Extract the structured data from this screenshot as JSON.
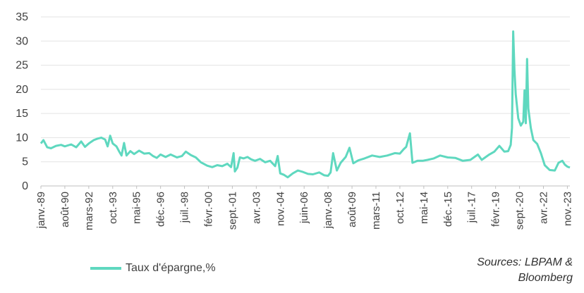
{
  "chart_data": {
    "type": "line",
    "title": "",
    "xlabel": "",
    "ylabel": "",
    "ylim": [
      0,
      35
    ],
    "yticks": [
      "0",
      "5",
      "10",
      "15",
      "20",
      "25",
      "30",
      "35"
    ],
    "grid": true,
    "legend_position": "bottom-left",
    "x_tick_labels": [
      "janv.-89",
      "août-90",
      "mars-92",
      "oct.-93",
      "mai-95",
      "déc.-96",
      "juil.-98",
      "févr.-00",
      "sept.-01",
      "avr.-03",
      "nov.-04",
      "juin-06",
      "janv.-08",
      "août-09",
      "mars-11",
      "oct.-12",
      "mai-14",
      "déc.-15",
      "juil.-17",
      "févr.-19",
      "sept.-20",
      "avr.-22",
      "nov.-23"
    ],
    "series": [
      {
        "name": "Taux d'épargne,%",
        "color": "#5fd8bf",
        "points": [
          [
            "1989-01",
            8.8
          ],
          [
            "1989-03",
            9.5
          ],
          [
            "1989-06",
            8.0
          ],
          [
            "1989-09",
            7.8
          ],
          [
            "1990-01",
            8.3
          ],
          [
            "1990-05",
            8.5
          ],
          [
            "1990-08",
            8.2
          ],
          [
            "1991-01",
            8.6
          ],
          [
            "1991-05",
            8.0
          ],
          [
            "1991-09",
            9.2
          ],
          [
            "1991-12",
            8.1
          ],
          [
            "1992-03",
            8.8
          ],
          [
            "1992-07",
            9.5
          ],
          [
            "1992-10",
            9.8
          ],
          [
            "1993-01",
            10.0
          ],
          [
            "1993-04",
            9.6
          ],
          [
            "1993-06",
            8.2
          ],
          [
            "1993-08",
            10.4
          ],
          [
            "1993-10",
            8.8
          ],
          [
            "1994-01",
            8.2
          ],
          [
            "1994-03",
            7.2
          ],
          [
            "1994-05",
            6.3
          ],
          [
            "1994-07",
            8.9
          ],
          [
            "1994-09",
            6.3
          ],
          [
            "1994-12",
            7.2
          ],
          [
            "1995-03",
            6.6
          ],
          [
            "1995-07",
            7.3
          ],
          [
            "1995-11",
            6.7
          ],
          [
            "1996-03",
            6.8
          ],
          [
            "1996-06",
            6.2
          ],
          [
            "1996-09",
            5.8
          ],
          [
            "1996-12",
            6.5
          ],
          [
            "1997-04",
            6.0
          ],
          [
            "1997-08",
            6.5
          ],
          [
            "1998-01",
            5.9
          ],
          [
            "1998-05",
            6.2
          ],
          [
            "1998-08",
            7.1
          ],
          [
            "1998-12",
            6.4
          ],
          [
            "1999-04",
            5.9
          ],
          [
            "1999-08",
            4.9
          ],
          [
            "2000-01",
            4.2
          ],
          [
            "2000-05",
            3.9
          ],
          [
            "2000-09",
            4.3
          ],
          [
            "2001-01",
            4.1
          ],
          [
            "2001-05",
            4.6
          ],
          [
            "2001-08",
            3.9
          ],
          [
            "2001-10",
            6.8
          ],
          [
            "2001-11",
            3.0
          ],
          [
            "2002-01",
            3.8
          ],
          [
            "2002-03",
            5.9
          ],
          [
            "2002-06",
            5.7
          ],
          [
            "2002-09",
            6.0
          ],
          [
            "2002-12",
            5.5
          ],
          [
            "2003-03",
            5.2
          ],
          [
            "2003-07",
            5.6
          ],
          [
            "2003-11",
            4.9
          ],
          [
            "2004-03",
            5.2
          ],
          [
            "2004-07",
            4.1
          ],
          [
            "2004-09",
            6.2
          ],
          [
            "2004-11",
            2.6
          ],
          [
            "2005-02",
            2.3
          ],
          [
            "2005-05",
            1.8
          ],
          [
            "2005-09",
            2.6
          ],
          [
            "2006-01",
            3.2
          ],
          [
            "2006-05",
            2.9
          ],
          [
            "2006-09",
            2.5
          ],
          [
            "2007-01",
            2.4
          ],
          [
            "2007-06",
            2.8
          ],
          [
            "2007-10",
            2.2
          ],
          [
            "2008-01",
            2.1
          ],
          [
            "2008-03",
            2.8
          ],
          [
            "2008-05",
            6.8
          ],
          [
            "2008-08",
            3.2
          ],
          [
            "2008-11",
            4.8
          ],
          [
            "2009-03",
            6.0
          ],
          [
            "2009-06",
            7.9
          ],
          [
            "2009-09",
            4.7
          ],
          [
            "2010-01",
            5.3
          ],
          [
            "2010-06",
            5.7
          ],
          [
            "2010-12",
            6.3
          ],
          [
            "2011-06",
            6.0
          ],
          [
            "2011-12",
            6.3
          ],
          [
            "2012-06",
            6.8
          ],
          [
            "2012-10",
            6.7
          ],
          [
            "2013-01",
            7.6
          ],
          [
            "2013-03",
            8.1
          ],
          [
            "2013-06",
            10.9
          ],
          [
            "2013-08",
            4.8
          ],
          [
            "2013-12",
            5.2
          ],
          [
            "2014-04",
            5.2
          ],
          [
            "2014-08",
            5.4
          ],
          [
            "2015-01",
            5.7
          ],
          [
            "2015-06",
            6.3
          ],
          [
            "2015-12",
            5.9
          ],
          [
            "2016-06",
            5.8
          ],
          [
            "2016-12",
            5.2
          ],
          [
            "2017-06",
            5.4
          ],
          [
            "2017-12",
            6.5
          ],
          [
            "2018-03",
            5.4
          ],
          [
            "2018-09",
            6.5
          ],
          [
            "2019-01",
            7.1
          ],
          [
            "2019-05",
            8.3
          ],
          [
            "2019-09",
            7.1
          ],
          [
            "2019-12",
            7.2
          ],
          [
            "2020-02",
            8.5
          ],
          [
            "2020-03",
            12.0
          ],
          [
            "2020-04",
            32.0
          ],
          [
            "2020-05",
            24.0
          ],
          [
            "2020-06",
            19.0
          ],
          [
            "2020-08",
            14.0
          ],
          [
            "2020-10",
            12.5
          ],
          [
            "2020-12",
            13.3
          ],
          [
            "2021-01",
            19.8
          ],
          [
            "2021-02",
            13.0
          ],
          [
            "2021-03",
            26.3
          ],
          [
            "2021-04",
            16.0
          ],
          [
            "2021-06",
            12.0
          ],
          [
            "2021-08",
            9.5
          ],
          [
            "2021-11",
            8.7
          ],
          [
            "2022-02",
            6.8
          ],
          [
            "2022-05",
            4.3
          ],
          [
            "2022-09",
            3.3
          ],
          [
            "2023-01",
            3.2
          ],
          [
            "2023-04",
            4.8
          ],
          [
            "2023-07",
            5.2
          ],
          [
            "2023-09",
            4.4
          ],
          [
            "2023-11",
            4.0
          ],
          [
            "2024-01",
            3.8
          ]
        ]
      }
    ]
  },
  "legend": {
    "label": "Taux d'épargne,%"
  },
  "source": {
    "line1": "Sources: LBPAM &",
    "line2": "Bloomberg"
  }
}
